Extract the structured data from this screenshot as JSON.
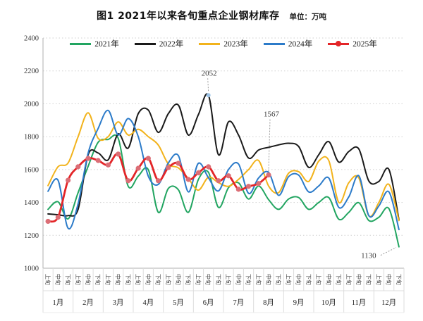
{
  "title": "图1  2021年以来各旬重点企业钢材库存",
  "unit_label": "单位：万吨",
  "colors": {
    "grid": "#CFCFCF",
    "axis": "#AFAFAF",
    "cell_border": "#DCDCDC",
    "tick_label": "#333333",
    "annotation_text": "#3A3A3A",
    "leader_line": "#9A9A9A"
  },
  "chart_data": {
    "type": "line",
    "title": "图1  2021年以来各旬重点企业钢材库存",
    "unit": "万吨",
    "grid": "dotted horizontal",
    "legend_position": "top",
    "y_axis": {
      "min": 1000,
      "max": 2400,
      "step": 200,
      "ticks": [
        2400,
        2200,
        2000,
        1800,
        1600,
        1400,
        1200,
        1000
      ]
    },
    "x_axis": {
      "periods": [
        "上旬",
        "中旬",
        "下旬"
      ],
      "months": [
        "1月",
        "2月",
        "3月",
        "4月",
        "5月",
        "6月",
        "7月",
        "8月",
        "9月",
        "10月",
        "11月",
        "12月"
      ]
    },
    "series": [
      {
        "name": "2021年",
        "color": "#22A561",
        "values": [
          1358,
          1404,
          1300,
          1460,
          1620,
          1766,
          1783,
          1790,
          1498,
          1560,
          1600,
          1340,
          1485,
          1477,
          1340,
          1540,
          1583,
          1370,
          1490,
          1519,
          1421,
          1500,
          1417,
          1358,
          1421,
          1430,
          1358,
          1400,
          1430,
          1298,
          1340,
          1398,
          1290,
          1310,
          1362,
          1130
        ]
      },
      {
        "name": "2022年",
        "color": "#1A1A1A",
        "values": [
          1330,
          1325,
          1320,
          1358,
          1690,
          1701,
          1659,
          1817,
          1731,
          1940,
          1962,
          1826,
          1940,
          1992,
          1810,
          1934,
          2052,
          1690,
          1890,
          1810,
          1670,
          1719,
          1735,
          1750,
          1760,
          1740,
          1613,
          1690,
          1770,
          1645,
          1710,
          1725,
          1530,
          1528,
          1600,
          1295
        ]
      },
      {
        "name": "2023年",
        "color": "#F2B31C",
        "values": [
          1502,
          1617,
          1640,
          1800,
          1945,
          1790,
          1800,
          1890,
          1810,
          1845,
          1800,
          1749,
          1634,
          1610,
          1545,
          1475,
          1553,
          1520,
          1498,
          1540,
          1600,
          1655,
          1500,
          1460,
          1578,
          1587,
          1528,
          1651,
          1655,
          1400,
          1520,
          1549,
          1319,
          1400,
          1510,
          1290
        ]
      },
      {
        "name": "2024年",
        "color": "#2C7BC9",
        "values": [
          1468,
          1535,
          1243,
          1392,
          1700,
          1850,
          1960,
          1810,
          1910,
          1800,
          1560,
          1510,
          1640,
          1685,
          1464,
          1638,
          1550,
          1470,
          1600,
          1634,
          1455,
          1549,
          1583,
          1443,
          1557,
          1566,
          1464,
          1500,
          1549,
          1370,
          1434,
          1562,
          1319,
          1379,
          1464,
          1235
        ]
      },
      {
        "name": "2025年",
        "color": "#E32528",
        "marker_color": "#DB6E76",
        "values": [
          1285,
          1310,
          1535,
          1617,
          1668,
          1655,
          1628,
          1694,
          1532,
          1608,
          1668,
          1532,
          1612,
          1638,
          1540,
          1580,
          1617,
          1532,
          1562,
          1480,
          1498,
          1515,
          1567
        ]
      }
    ],
    "annotations": [
      {
        "text": "2052",
        "series": "2022年",
        "point_index": 16,
        "marker_color": "#9DC3E6"
      },
      {
        "text": "1567",
        "series": "2025年",
        "point_index": 22
      },
      {
        "text": "1130",
        "series": "2021年",
        "point_index": 35
      }
    ]
  }
}
